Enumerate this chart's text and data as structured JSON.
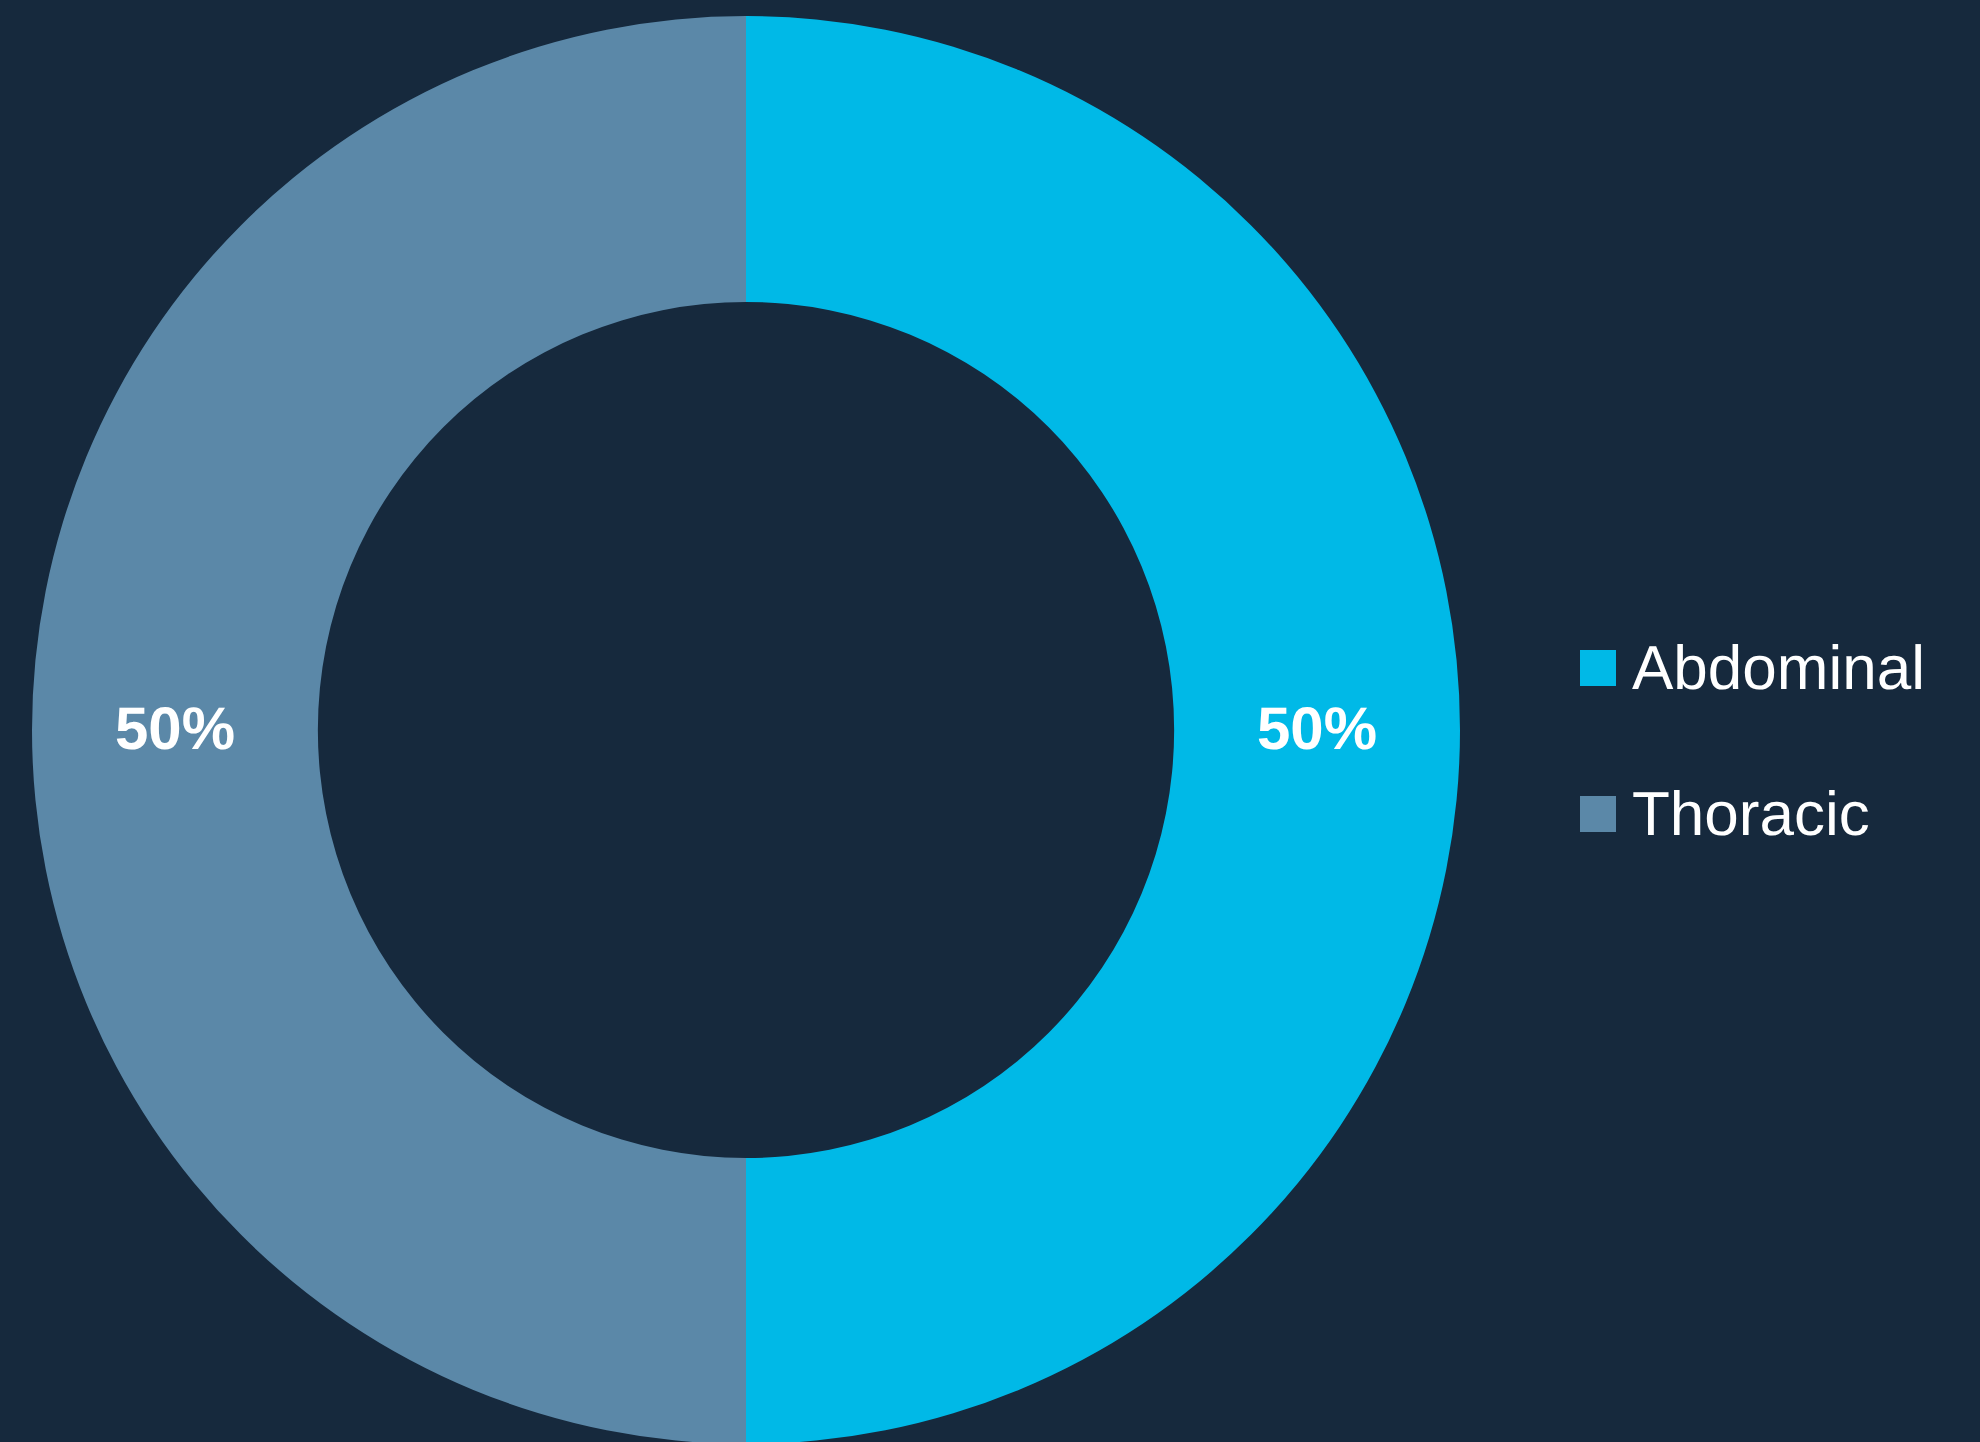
{
  "chart_data": {
    "type": "donut",
    "categories": [
      "Abdominal",
      "Thoracic"
    ],
    "values": [
      50,
      50
    ],
    "value_labels": [
      "50%",
      "50%"
    ],
    "colors": [
      "#00b9e7",
      "#5b88a8"
    ],
    "legend": "right"
  }
}
